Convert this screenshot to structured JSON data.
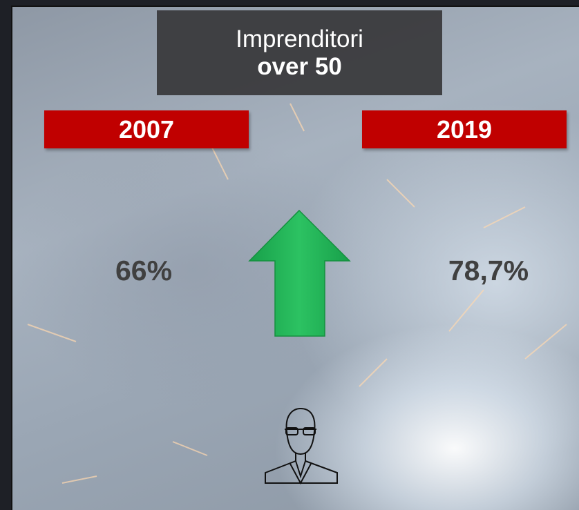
{
  "header": {
    "line1": "Imprenditori",
    "line2": "over 50"
  },
  "columns": [
    {
      "year": "2007",
      "value": "66%"
    },
    {
      "year": "2019",
      "value": "78,7%"
    }
  ]
}
